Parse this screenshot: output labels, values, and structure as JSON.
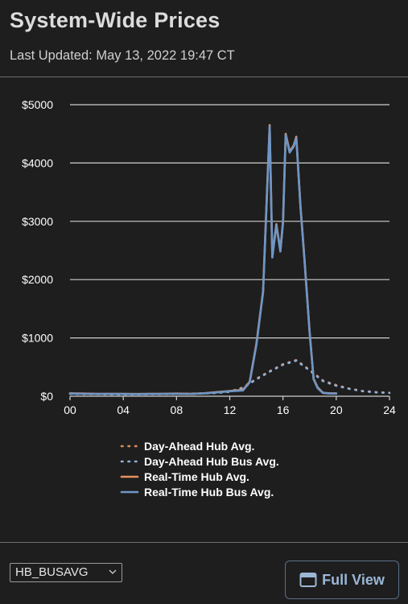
{
  "header": {
    "title": "System-Wide Prices",
    "last_updated": "Last Updated: May 13, 2022 19:47 CT"
  },
  "controls": {
    "selected_option": "HB_BUSAVG",
    "full_view_label": "Full View"
  },
  "colors": {
    "background": "#1e1e1e",
    "grid": "#d0d0d0",
    "day_ahead_hub": "#d98b5a",
    "day_ahead_bus": "#8faed6",
    "real_time_hub": "#e89060",
    "real_time_bus": "#6e96c6",
    "button_text": "#9bb7d6"
  },
  "chart_data": {
    "type": "line",
    "xlim": [
      0,
      24
    ],
    "ylim": [
      0,
      5000
    ],
    "x_ticks": [
      "00",
      "04",
      "08",
      "12",
      "16",
      "20",
      "24"
    ],
    "y_ticks": [
      "$0",
      "$1000",
      "$2000",
      "$3000",
      "$4000",
      "$5000"
    ],
    "grid": true,
    "legend_position": "bottom",
    "series": [
      {
        "name": "Day-Ahead Hub Avg.",
        "style": "dotted",
        "x": [
          0,
          1,
          2,
          3,
          4,
          5,
          6,
          7,
          8,
          9,
          10,
          11,
          12,
          13,
          14,
          15,
          16,
          17,
          18,
          19,
          20,
          21,
          22,
          23,
          24
        ],
        "y": [
          45,
          40,
          38,
          36,
          35,
          36,
          38,
          40,
          42,
          45,
          50,
          60,
          80,
          150,
          300,
          430,
          550,
          620,
          450,
          270,
          190,
          130,
          90,
          70,
          60
        ]
      },
      {
        "name": "Day-Ahead Hub Bus Avg.",
        "style": "dotted",
        "x": [
          0,
          1,
          2,
          3,
          4,
          5,
          6,
          7,
          8,
          9,
          10,
          11,
          12,
          13,
          14,
          15,
          16,
          17,
          18,
          19,
          20,
          21,
          22,
          23,
          24
        ],
        "y": [
          40,
          36,
          34,
          32,
          31,
          32,
          34,
          36,
          38,
          40,
          45,
          55,
          75,
          140,
          290,
          420,
          540,
          610,
          440,
          260,
          180,
          125,
          85,
          65,
          55
        ]
      },
      {
        "name": "Real-Time Hub Avg.",
        "style": "solid",
        "x": [
          0,
          1,
          2,
          3,
          4,
          5,
          6,
          7,
          8,
          9,
          10,
          11,
          12,
          13,
          13.5,
          14,
          14.5,
          14.8,
          15,
          15.2,
          15.5,
          15.8,
          16,
          16.2,
          16.5,
          16.8,
          17,
          17.3,
          17.6,
          18,
          18.3,
          18.6,
          19,
          19.5,
          20
        ],
        "y": [
          50,
          45,
          40,
          42,
          40,
          38,
          40,
          42,
          45,
          40,
          50,
          70,
          90,
          110,
          250,
          900,
          1800,
          3500,
          4650,
          2400,
          2950,
          2500,
          3000,
          4500,
          4200,
          4300,
          4450,
          3300,
          2400,
          1100,
          300,
          150,
          60,
          50,
          50
        ]
      },
      {
        "name": "Real-Time Hub Bus Avg.",
        "style": "solid",
        "x": [
          0,
          1,
          2,
          3,
          4,
          5,
          6,
          7,
          8,
          9,
          10,
          11,
          12,
          13,
          13.5,
          14,
          14.5,
          14.8,
          15,
          15.2,
          15.5,
          15.8,
          16,
          16.2,
          16.5,
          16.8,
          17,
          17.3,
          17.6,
          18,
          18.3,
          18.6,
          19,
          19.5,
          20
        ],
        "y": [
          45,
          42,
          38,
          40,
          38,
          36,
          38,
          40,
          42,
          38,
          48,
          65,
          85,
          100,
          240,
          880,
          1780,
          3480,
          4630,
          2380,
          2930,
          2480,
          2980,
          4480,
          4180,
          4280,
          4430,
          3280,
          2380,
          1080,
          290,
          140,
          55,
          45,
          45
        ]
      }
    ]
  }
}
